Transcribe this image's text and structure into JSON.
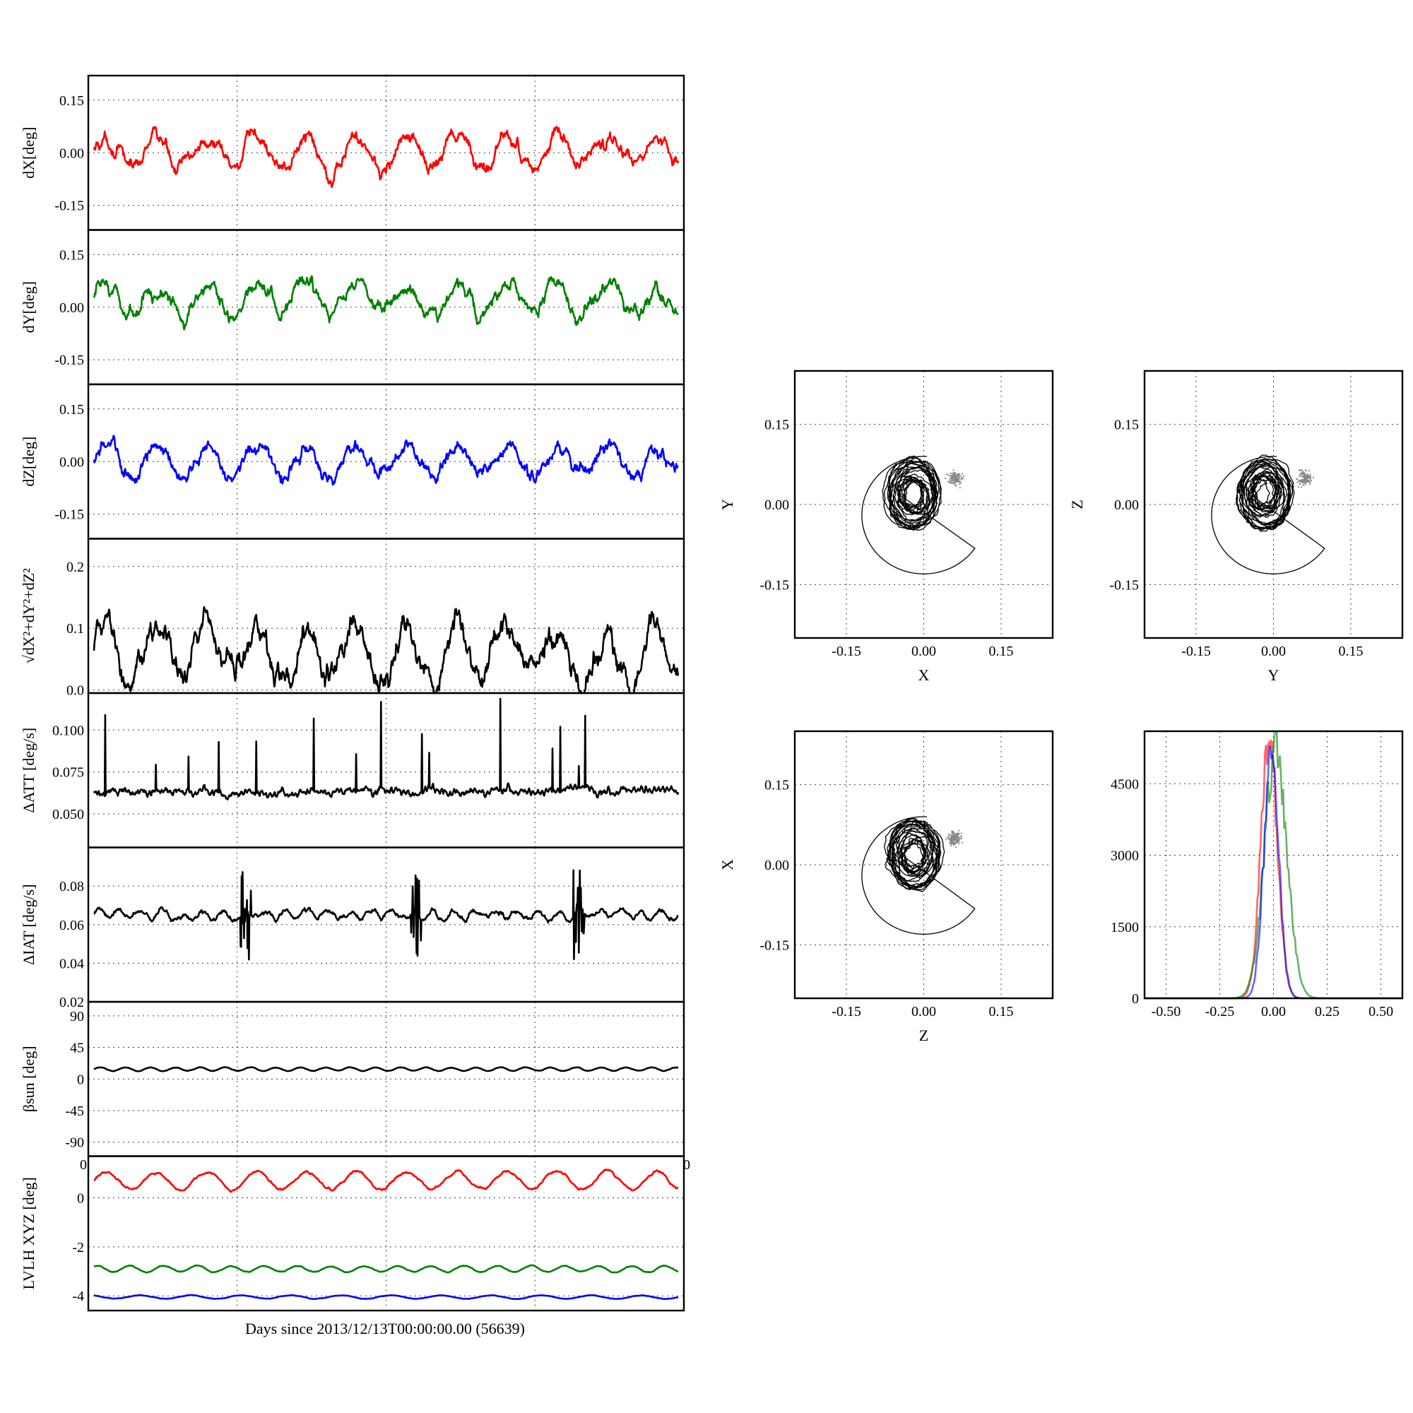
{
  "colors": {
    "x": "#ff0000",
    "y": "#008000",
    "z": "#0000ff",
    "k": "#000000"
  },
  "chart_data": [
    {
      "type": "line",
      "id": "dx",
      "ylabel": "dX[deg]",
      "ylim": [
        -0.22,
        0.22
      ],
      "yticks": [
        "0.15",
        "0.00",
        "-0.15"
      ],
      "color": "x",
      "base": 0.0,
      "amp": 0.04,
      "period": 0.6,
      "noise": 0.012,
      "grid": true
    },
    {
      "type": "line",
      "id": "dy",
      "ylabel": "dY[deg]",
      "ylim": [
        -0.22,
        0.22
      ],
      "yticks": [
        "0.15",
        "0.00",
        "-0.15"
      ],
      "color": "y",
      "base": 0.02,
      "amp": 0.04,
      "period": 0.6,
      "noise": 0.012,
      "grid": true
    },
    {
      "type": "line",
      "id": "dz",
      "ylabel": "dZ[deg]",
      "ylim": [
        -0.22,
        0.22
      ],
      "yticks": [
        "0.15",
        "0.00",
        "-0.15"
      ],
      "color": "z",
      "base": 0.0,
      "amp": 0.04,
      "period": 0.6,
      "noise": 0.012,
      "grid": true
    },
    {
      "type": "line",
      "id": "mag",
      "ylabel": "√dX²+dY²+dZ²",
      "ylim": [
        -0.005,
        0.245
      ],
      "yticks": [
        "0.2",
        "0.1",
        "0.0"
      ],
      "color": "k",
      "base": 0.06,
      "amp": 0.045,
      "period": 0.6,
      "noise": 0.012,
      "grid": true
    },
    {
      "type": "line",
      "id": "datt",
      "ylabel": "ΔATT [deg/s]",
      "ylim": [
        0.03,
        0.122
      ],
      "yticks": [
        "0.100",
        "0.075",
        "0.050"
      ],
      "color": "k",
      "base": 0.0635,
      "amp": 0.0008,
      "period": 0.05,
      "noise": 0.0012,
      "grid": true
    },
    {
      "type": "line",
      "id": "diat",
      "ylabel": "ΔIAT [deg/s]",
      "ylim": [
        0.02,
        0.1
      ],
      "yticks": [
        "0.08",
        "0.06",
        "0.04",
        "0.02"
      ],
      "color": "k",
      "base": 0.065,
      "amp": 0.002,
      "period": 0.25,
      "noise": 0.0008,
      "grid": true
    },
    {
      "type": "line",
      "id": "beta",
      "ylabel": "βsun [deg]",
      "ylim": [
        -110,
        110
      ],
      "yticks": [
        "90",
        "45",
        "0",
        "-45",
        "-90"
      ],
      "color": "k",
      "base": 14,
      "amp": 2.5,
      "period": 0.3,
      "noise": 0.2,
      "grid": true
    },
    {
      "type": "line",
      "id": "lvlh",
      "ylabel": "LVLH XYZ [deg]",
      "ylim": [
        -4.6,
        1.7
      ],
      "yticks": [
        "0",
        "-2",
        "-4"
      ],
      "grid": true,
      "series": [
        {
          "color": "x",
          "base": 0.7,
          "amp": 0.35,
          "period": 0.6
        },
        {
          "color": "y",
          "base": -2.9,
          "amp": 0.12,
          "period": 0.4
        },
        {
          "color": "z",
          "base": -4.05,
          "amp": 0.07,
          "period": 0.6
        }
      ]
    }
  ],
  "bottom_xlabel": "Days since 2013/12/13T00:00:00.00 (56639)",
  "lvlh_xtick_left": "0",
  "lvlh_xtick_right": "0",
  "scatter_panels": [
    {
      "type": "scatter",
      "id": "xy",
      "xlabel": "X",
      "ylabel": "Y",
      "xlim": [
        -0.25,
        0.25
      ],
      "ylim": [
        -0.25,
        0.25
      ],
      "xticks": [
        "-0.15",
        "0.00",
        "0.15"
      ],
      "yticks": [
        "0.15",
        "0.00",
        "-0.15"
      ]
    },
    {
      "type": "scatter",
      "id": "yz",
      "xlabel": "Y",
      "ylabel": "Z",
      "xlim": [
        -0.25,
        0.25
      ],
      "ylim": [
        -0.25,
        0.25
      ],
      "xticks": [
        "-0.15",
        "0.00",
        "0.15"
      ],
      "yticks": [
        "0.15",
        "0.00",
        "-0.15"
      ]
    },
    {
      "type": "scatter",
      "id": "zx",
      "xlabel": "Z",
      "ylabel": "X",
      "xlim": [
        -0.25,
        0.25
      ],
      "ylim": [
        -0.25,
        0.25
      ],
      "xticks": [
        "-0.15",
        "0.00",
        "0.15"
      ],
      "yticks": [
        "0.15",
        "0.00",
        "-0.15"
      ]
    }
  ],
  "histogram": {
    "type": "line",
    "xlim": [
      -0.6,
      0.6
    ],
    "ylim": [
      0,
      5600
    ],
    "xticks": [
      "-0.50",
      "-0.25",
      "0.00",
      "0.25",
      "0.50"
    ],
    "yticks": [
      "4500",
      "3000",
      "1500",
      "0"
    ],
    "series": [
      {
        "color": "x",
        "center": -0.02,
        "sigma": 0.038,
        "peak": 5500
      },
      {
        "color": "y",
        "center": 0.01,
        "sigma": 0.052,
        "peak": 5200
      },
      {
        "color": "z",
        "center": -0.01,
        "sigma": 0.035,
        "peak": 5000
      }
    ]
  }
}
